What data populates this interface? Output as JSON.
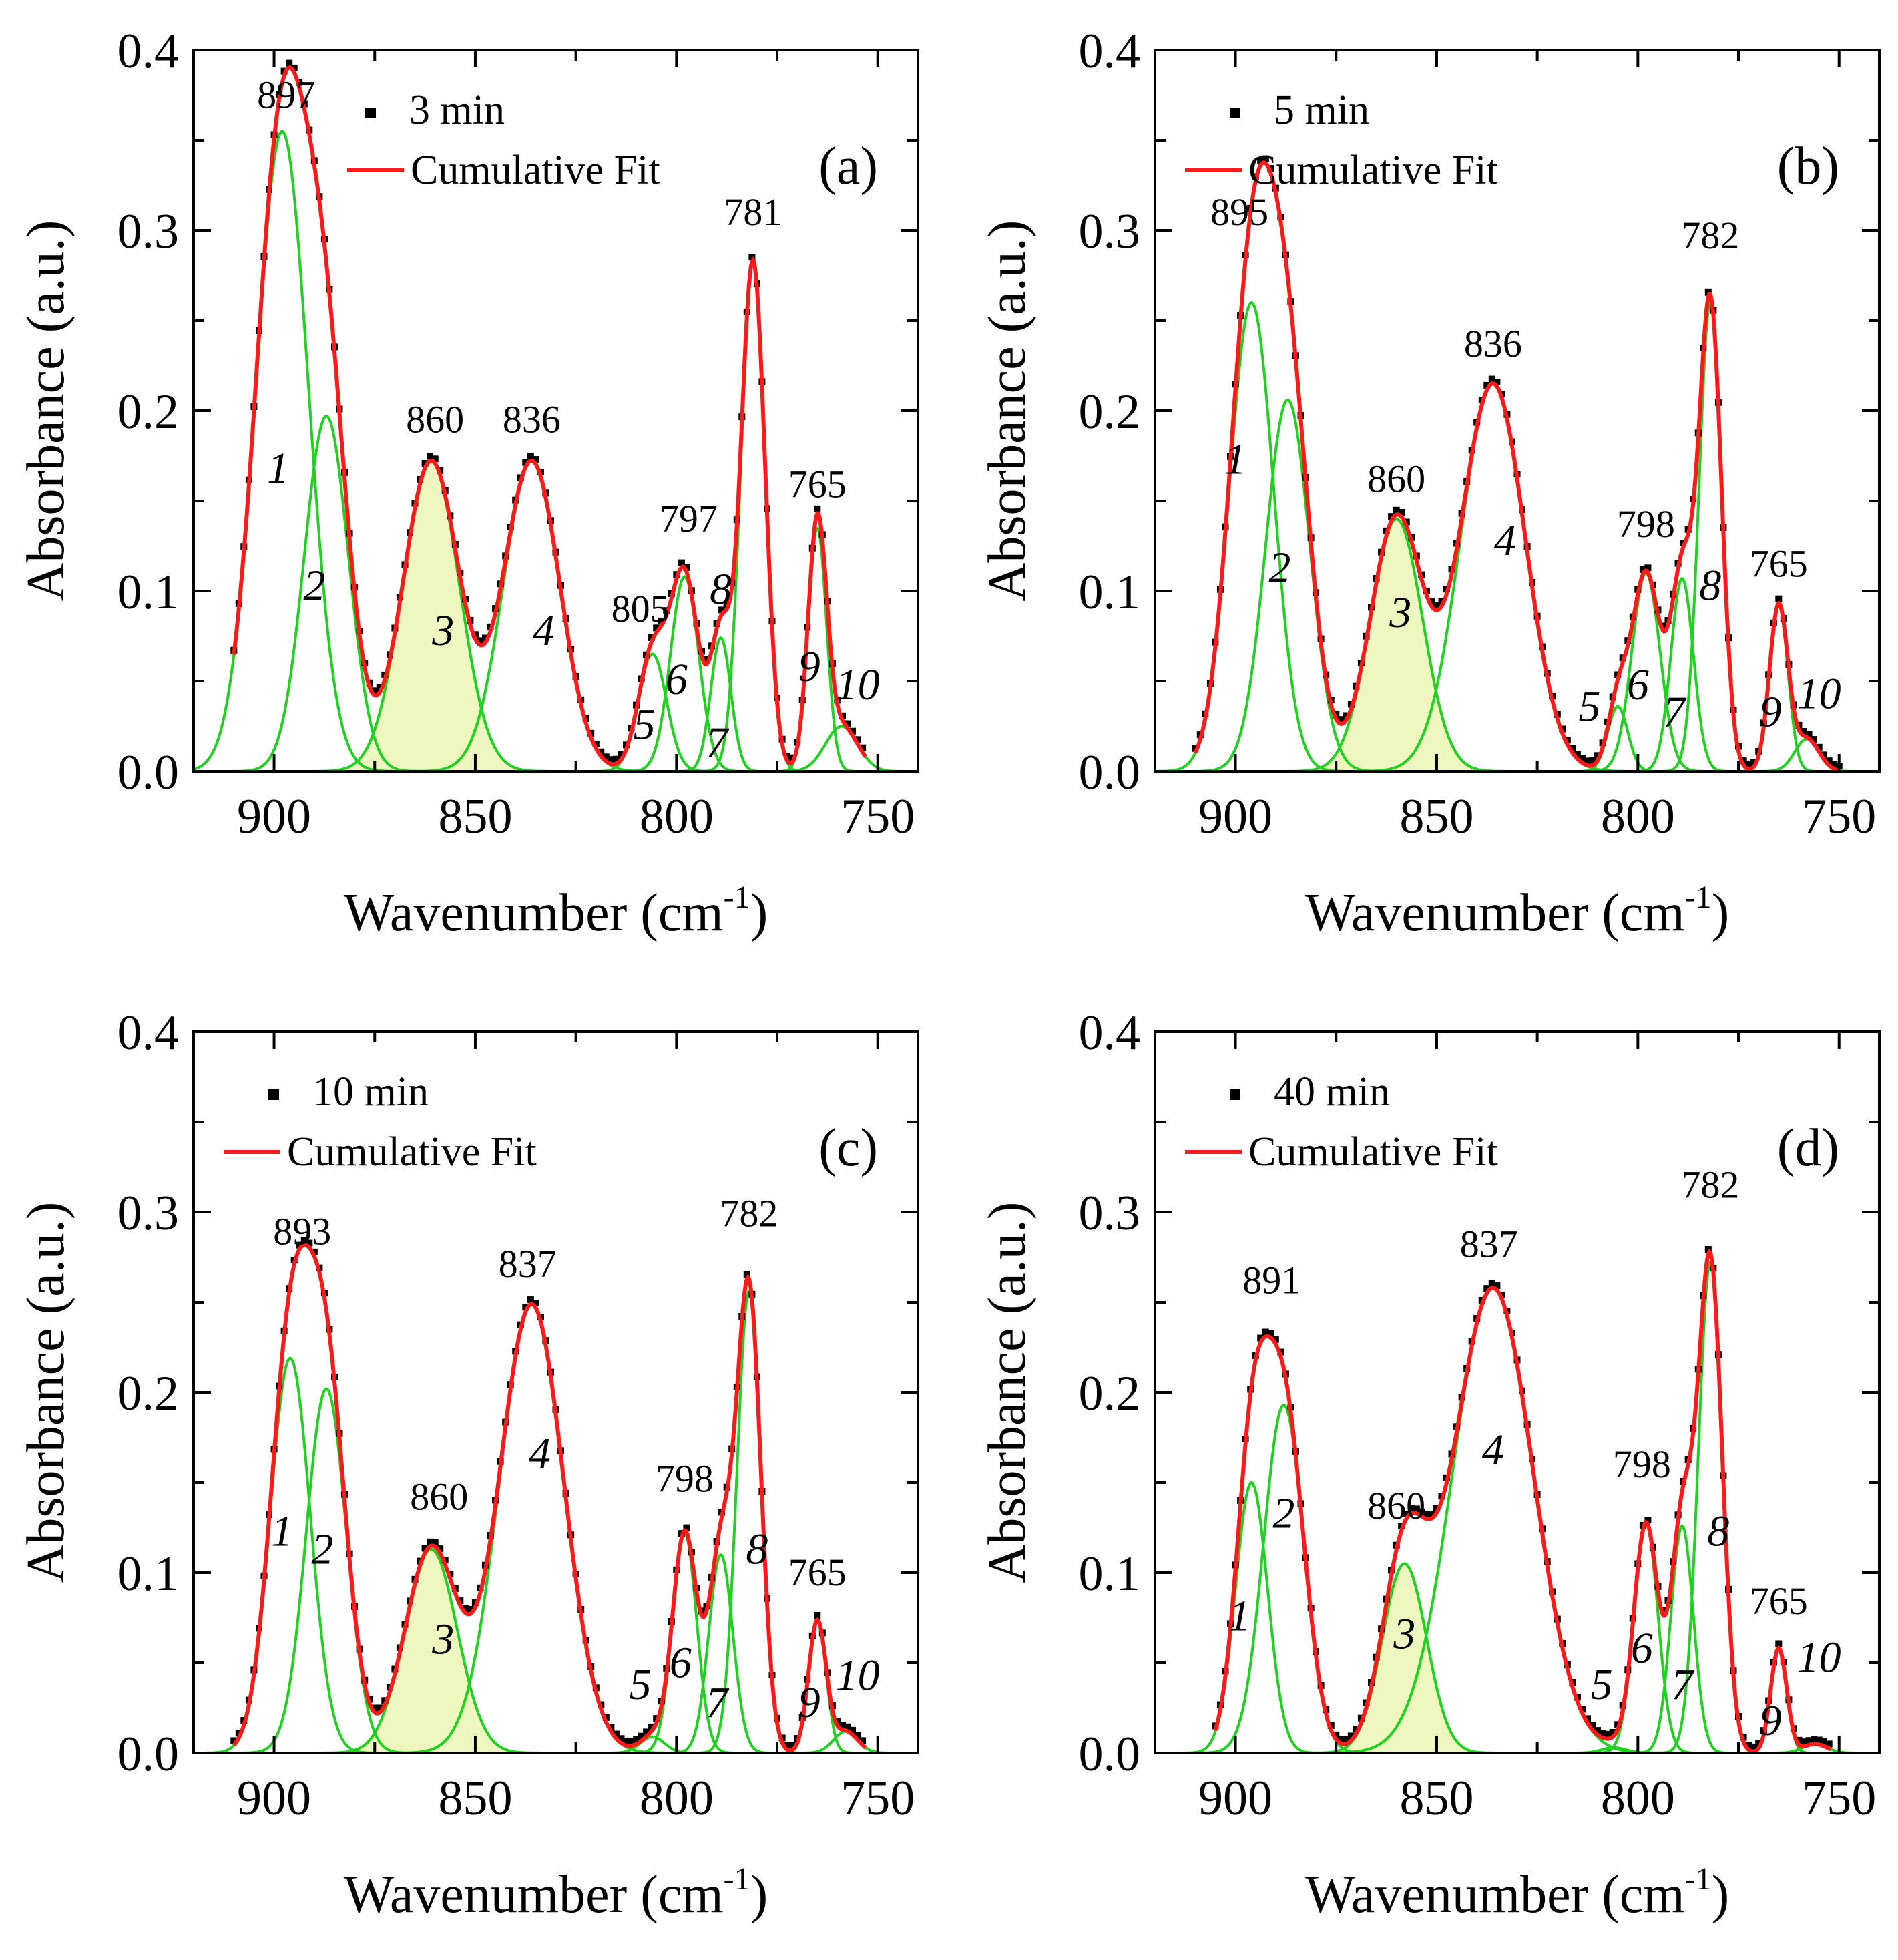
{
  "colors": {
    "data": "#000000",
    "fit": "#ff1a1a",
    "component": "#1fd21f",
    "shade": "#eef7c0"
  },
  "chart_data": [
    {
      "type": "line",
      "panel_label": "(a)",
      "xlabel": "Wavenumber (cm",
      "xlabel_sup": "-1",
      "xlabel_end": ")",
      "ylabel": "Absorbance (a.u.)",
      "xlim": [
        920,
        740
      ],
      "ylim": [
        0,
        0.4
      ],
      "xticks": [
        900,
        850,
        800,
        750
      ],
      "yticks": [
        "0.0",
        "0.1",
        "0.2",
        "0.3",
        "0.4"
      ],
      "x_range": [
        910,
        753
      ],
      "legend": {
        "position": "top-right",
        "entries": [
          {
            "name": "3 min",
            "marker": "square"
          },
          {
            "name": "Cumulative Fit",
            "marker": "line"
          }
        ]
      },
      "shaded_component": 3,
      "components": [
        {
          "id": "1",
          "center": 898,
          "amp": 0.355,
          "width": 6.5,
          "label_x": 899,
          "label_y": 0.16
        },
        {
          "id": "2",
          "center": 887,
          "amp": 0.197,
          "width": 5.5,
          "label_x": 890,
          "label_y": 0.095
        },
        {
          "id": "3",
          "center": 861,
          "amp": 0.172,
          "width": 7.0,
          "label_x": 858,
          "label_y": 0.07
        },
        {
          "id": "4",
          "center": 836,
          "amp": 0.172,
          "width": 7.0,
          "label_x": 833,
          "label_y": 0.07
        },
        {
          "id": "5",
          "center": 806,
          "amp": 0.065,
          "width": 3.5,
          "label_x": 808,
          "label_y": 0.018
        },
        {
          "id": "6",
          "center": 798,
          "amp": 0.108,
          "width": 3.5,
          "label_x": 800,
          "label_y": 0.043
        },
        {
          "id": "7",
          "center": 789,
          "amp": 0.074,
          "width": 2.5,
          "label_x": 790,
          "label_y": 0.008
        },
        {
          "id": "8",
          "center": 781,
          "amp": 0.283,
          "width": 3.0,
          "label_x": 789,
          "label_y": 0.093
        },
        {
          "id": "9",
          "center": 765,
          "amp": 0.135,
          "width": 2.3,
          "label_x": 767,
          "label_y": 0.05
        },
        {
          "id": "10",
          "center": 759,
          "amp": 0.025,
          "width": 4.0,
          "label_x": 755,
          "label_y": 0.04
        }
      ],
      "peaks": [
        {
          "label": "897",
          "x": 897,
          "y": 0.368
        },
        {
          "label": "860",
          "x": 860,
          "y": 0.188
        },
        {
          "label": "836",
          "x": 836,
          "y": 0.188
        },
        {
          "label": "805",
          "x": 809,
          "y": 0.083
        },
        {
          "label": "797",
          "x": 797,
          "y": 0.133
        },
        {
          "label": "781",
          "x": 781,
          "y": 0.303
        },
        {
          "label": "765",
          "x": 765,
          "y": 0.152
        }
      ]
    },
    {
      "type": "line",
      "panel_label": "(b)",
      "xlabel": "Wavenumber (cm",
      "xlabel_sup": "-1",
      "xlabel_end": ")",
      "ylabel": "Absorbance (a.u.)",
      "xlim": [
        920,
        740
      ],
      "ylim": [
        0,
        0.4
      ],
      "xticks": [
        900,
        850,
        800,
        750
      ],
      "yticks": [
        "0.0",
        "0.1",
        "0.2",
        "0.3",
        "0.4"
      ],
      "x_range": [
        910,
        750
      ],
      "legend": {
        "position": "top-left",
        "entries": [
          {
            "name": "5 min",
            "marker": "square"
          },
          {
            "name": "Cumulative Fit",
            "marker": "line"
          }
        ]
      },
      "shaded_component": 3,
      "components": [
        {
          "id": "1",
          "center": 896,
          "amp": 0.26,
          "width": 5.5,
          "label_x": 900,
          "label_y": 0.165
        },
        {
          "id": "2",
          "center": 887,
          "amp": 0.206,
          "width": 5.5,
          "label_x": 889,
          "label_y": 0.105
        },
        {
          "id": "3",
          "center": 860,
          "amp": 0.14,
          "width": 6.5,
          "label_x": 859,
          "label_y": 0.08
        },
        {
          "id": "4",
          "center": 836,
          "amp": 0.215,
          "width": 8.0,
          "label_x": 833,
          "label_y": 0.12
        },
        {
          "id": "5",
          "center": 805,
          "amp": 0.036,
          "width": 2.5,
          "label_x": 812,
          "label_y": 0.028
        },
        {
          "id": "6",
          "center": 798,
          "amp": 0.11,
          "width": 3.5,
          "label_x": 800,
          "label_y": 0.04
        },
        {
          "id": "7",
          "center": 789,
          "amp": 0.107,
          "width": 2.8,
          "label_x": 791,
          "label_y": 0.025
        },
        {
          "id": "8",
          "center": 782,
          "amp": 0.26,
          "width": 2.8,
          "label_x": 782,
          "label_y": 0.095
        },
        {
          "id": "9",
          "center": 765,
          "amp": 0.092,
          "width": 2.3,
          "label_x": 767,
          "label_y": 0.025
        },
        {
          "id": "10",
          "center": 758,
          "amp": 0.018,
          "width": 3.0,
          "label_x": 755,
          "label_y": 0.035
        }
      ],
      "peaks": [
        {
          "label": "895",
          "x": 899,
          "y": 0.303
        },
        {
          "label": "860",
          "x": 860,
          "y": 0.155
        },
        {
          "label": "836",
          "x": 836,
          "y": 0.23
        },
        {
          "label": "798",
          "x": 798,
          "y": 0.13
        },
        {
          "label": "782",
          "x": 782,
          "y": 0.29
        },
        {
          "label": "765",
          "x": 765,
          "y": 0.108
        }
      ]
    },
    {
      "type": "line",
      "panel_label": "(c)",
      "xlabel": "Wavenumber (cm",
      "xlabel_sup": "-1",
      "xlabel_end": ")",
      "ylabel": "Absorbance (a.u.)",
      "xlim": [
        920,
        740
      ],
      "ylim": [
        0,
        0.4
      ],
      "xticks": [
        900,
        850,
        800,
        750
      ],
      "yticks": [
        "0.0",
        "0.1",
        "0.2",
        "0.3",
        "0.4"
      ],
      "x_range": [
        910,
        753
      ],
      "legend": {
        "position": "top-left",
        "entries": [
          {
            "name": "10 min",
            "marker": "square"
          },
          {
            "name": "Cumulative Fit",
            "marker": "line"
          }
        ]
      },
      "shaded_component": 3,
      "components": [
        {
          "id": "1",
          "center": 896,
          "amp": 0.219,
          "width": 5.0,
          "label_x": 898,
          "label_y": 0.115
        },
        {
          "id": "2",
          "center": 887,
          "amp": 0.202,
          "width": 5.0,
          "label_x": 888,
          "label_y": 0.105
        },
        {
          "id": "3",
          "center": 861,
          "amp": 0.113,
          "width": 6.5,
          "label_x": 858,
          "label_y": 0.055
        },
        {
          "id": "4",
          "center": 836,
          "amp": 0.249,
          "width": 8.0,
          "label_x": 834,
          "label_y": 0.158
        },
        {
          "id": "5",
          "center": 806,
          "amp": 0.009,
          "width": 3.0,
          "label_x": 809,
          "label_y": 0.03
        },
        {
          "id": "6",
          "center": 798,
          "amp": 0.122,
          "width": 3.0,
          "label_x": 799,
          "label_y": 0.042
        },
        {
          "id": "7",
          "center": 789,
          "amp": 0.11,
          "width": 3.0,
          "label_x": 790,
          "label_y": 0.02
        },
        {
          "id": "8",
          "center": 782,
          "amp": 0.256,
          "width": 3.0,
          "label_x": 780,
          "label_y": 0.105
        },
        {
          "id": "9",
          "center": 765,
          "amp": 0.073,
          "width": 2.2,
          "label_x": 767,
          "label_y": 0.02
        },
        {
          "id": "10",
          "center": 758,
          "amp": 0.012,
          "width": 3.0,
          "label_x": 755,
          "label_y": 0.035
        }
      ],
      "peaks": [
        {
          "label": "893",
          "x": 893,
          "y": 0.282
        },
        {
          "label": "860",
          "x": 859,
          "y": 0.135
        },
        {
          "label": "837",
          "x": 837,
          "y": 0.264
        },
        {
          "label": "798",
          "x": 798,
          "y": 0.145
        },
        {
          "label": "782",
          "x": 782,
          "y": 0.292
        },
        {
          "label": "765",
          "x": 765,
          "y": 0.093
        }
      ]
    },
    {
      "type": "line",
      "panel_label": "(d)",
      "xlabel": "Wavenumber (cm",
      "xlabel_sup": "-1",
      "xlabel_end": ")",
      "ylabel": "Absorbance (a.u.)",
      "xlim": [
        920,
        740
      ],
      "ylim": [
        0,
        0.4
      ],
      "xticks": [
        900,
        850,
        800,
        750
      ],
      "yticks": [
        "0.0",
        "0.1",
        "0.2",
        "0.3",
        "0.4"
      ],
      "x_range": [
        905,
        752
      ],
      "legend": {
        "position": "top-left",
        "entries": [
          {
            "name": "40 min",
            "marker": "square"
          },
          {
            "name": "Cumulative Fit",
            "marker": "line"
          }
        ]
      },
      "shaded_component": 3,
      "components": [
        {
          "id": "1",
          "center": 896,
          "amp": 0.15,
          "width": 4.0,
          "label_x": 899,
          "label_y": 0.068
        },
        {
          "id": "2",
          "center": 888,
          "amp": 0.193,
          "width": 5.0,
          "label_x": 888,
          "label_y": 0.125
        },
        {
          "id": "3",
          "center": 858,
          "amp": 0.105,
          "width": 5.5,
          "label_x": 858,
          "label_y": 0.058
        },
        {
          "id": "4",
          "center": 836,
          "amp": 0.258,
          "width": 10.0,
          "label_x": 836,
          "label_y": 0.16
        },
        {
          "id": "5",
          "center": 806,
          "amp": 0.003,
          "width": 3.0,
          "label_x": 809,
          "label_y": 0.03
        },
        {
          "id": "6",
          "center": 798,
          "amp": 0.127,
          "width": 3.0,
          "label_x": 799,
          "label_y": 0.05
        },
        {
          "id": "7",
          "center": 789,
          "amp": 0.126,
          "width": 2.8,
          "label_x": 789,
          "label_y": 0.03
        },
        {
          "id": "8",
          "center": 782,
          "amp": 0.272,
          "width": 3.0,
          "label_x": 780,
          "label_y": 0.115
        },
        {
          "id": "9",
          "center": 765,
          "amp": 0.058,
          "width": 2.0,
          "label_x": 767,
          "label_y": 0.01
        },
        {
          "id": "10",
          "center": 756,
          "amp": 0.005,
          "width": 3.0,
          "label_x": 755,
          "label_y": 0.045
        }
      ],
      "peaks": [
        {
          "label": "891",
          "x": 891,
          "y": 0.255
        },
        {
          "label": "860",
          "x": 860,
          "y": 0.13
        },
        {
          "label": "837",
          "x": 837,
          "y": 0.275
        },
        {
          "label": "798",
          "x": 799,
          "y": 0.153
        },
        {
          "label": "782",
          "x": 782,
          "y": 0.308
        },
        {
          "label": "765",
          "x": 765,
          "y": 0.077
        }
      ]
    }
  ]
}
